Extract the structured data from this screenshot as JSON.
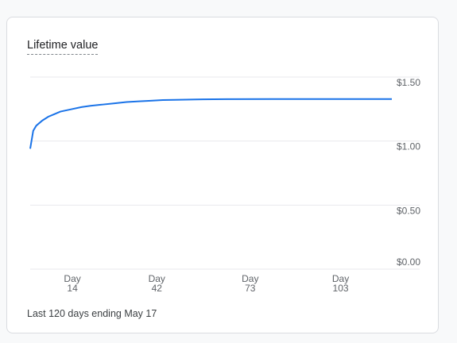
{
  "card": {
    "title": "Lifetime value",
    "footer": "Last 120 days ending May 17"
  },
  "colors": {
    "line": "#1a73e8",
    "grid": "#e8eaed",
    "axis_text": "#5f6368"
  },
  "chart_data": {
    "type": "line",
    "title": "Lifetime value",
    "xlabel": "",
    "ylabel": "",
    "xlim": [
      0,
      120
    ],
    "ylim": [
      0,
      1.5
    ],
    "y_ticks": [
      {
        "value": 0,
        "label": "$0.00"
      },
      {
        "value": 0.5,
        "label": "$0.50"
      },
      {
        "value": 1.0,
        "label": "$1.00"
      },
      {
        "value": 1.5,
        "label": "$1.50"
      }
    ],
    "x_ticks": [
      {
        "value": 14,
        "label_top": "Day",
        "label_bottom": "14"
      },
      {
        "value": 42,
        "label_top": "Day",
        "label_bottom": "42"
      },
      {
        "value": 73,
        "label_top": "Day",
        "label_bottom": "73"
      },
      {
        "value": 103,
        "label_top": "Day",
        "label_bottom": "103"
      }
    ],
    "grid": true,
    "series": [
      {
        "x": [
          0,
          1,
          2,
          4,
          6,
          8,
          10,
          12,
          14,
          17,
          20,
          24,
          28,
          32,
          36,
          40,
          44,
          48,
          55,
          65,
          80,
          95,
          110,
          120
        ],
        "y": [
          0.94,
          1.08,
          1.12,
          1.16,
          1.19,
          1.21,
          1.23,
          1.24,
          1.25,
          1.265,
          1.275,
          1.285,
          1.295,
          1.305,
          1.31,
          1.315,
          1.32,
          1.322,
          1.325,
          1.327,
          1.328,
          1.328,
          1.328,
          1.328
        ]
      }
    ]
  }
}
